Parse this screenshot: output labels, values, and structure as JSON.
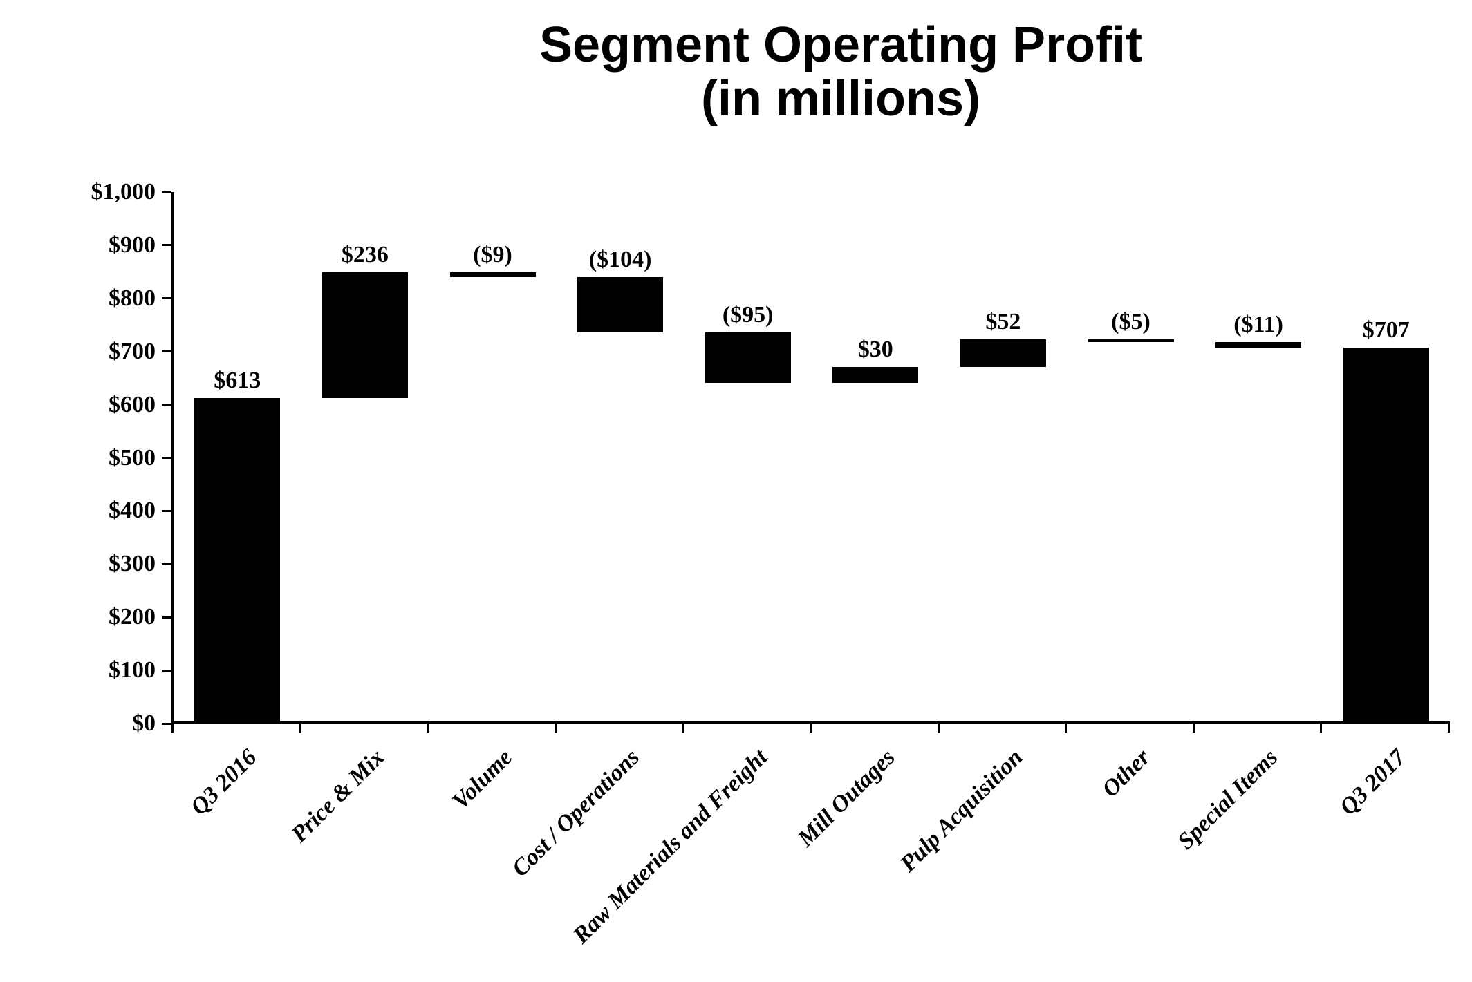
{
  "title": {
    "line1": "Segment Operating Profit",
    "line2": "(in millions)"
  },
  "chart_data": {
    "type": "bar",
    "subtype": "waterfall",
    "title": "Segment Operating Profit",
    "subtitle": "(in millions)",
    "bar_color": "#000000",
    "background_color": "#ffffff",
    "grid": "off",
    "legend": "none",
    "y_axis": {
      "min": 0,
      "max": 1000,
      "tick_interval": 100,
      "tick_labels": [
        "$0",
        "$100",
        "$200",
        "$300",
        "$400",
        "$500",
        "$600",
        "$700",
        "$800",
        "$900",
        "$1,000"
      ]
    },
    "categories": [
      {
        "label": "Q3 2016",
        "slug": "q3-2016",
        "kind": "total",
        "value": 613,
        "value_label": "$613"
      },
      {
        "label": "Price & Mix",
        "slug": "price-and-mix",
        "kind": "delta",
        "value": 236,
        "value_label": "$236"
      },
      {
        "label": "Volume",
        "slug": "volume",
        "kind": "delta",
        "value": -9,
        "value_label": "($9)"
      },
      {
        "label": "Cost / Operations",
        "slug": "cost-operations",
        "kind": "delta",
        "value": -104,
        "value_label": "($104)"
      },
      {
        "label": "Raw Materials and Freight",
        "slug": "raw-materials-and-freight",
        "kind": "delta",
        "value": -95,
        "value_label": "($95)"
      },
      {
        "label": "Mill Outages",
        "slug": "mill-outages",
        "kind": "delta",
        "value": 30,
        "value_label": "$30"
      },
      {
        "label": "Pulp Acquisition",
        "slug": "pulp-acquisition",
        "kind": "delta",
        "value": 52,
        "value_label": "$52"
      },
      {
        "label": "Other",
        "slug": "other",
        "kind": "delta",
        "value": -5,
        "value_label": "($5)"
      },
      {
        "label": "Special Items",
        "slug": "special-items",
        "kind": "delta",
        "value": -11,
        "value_label": "($11)"
      },
      {
        "label": "Q3 2017",
        "slug": "q3-2017",
        "kind": "total",
        "value": 707,
        "value_label": "$707"
      }
    ]
  }
}
